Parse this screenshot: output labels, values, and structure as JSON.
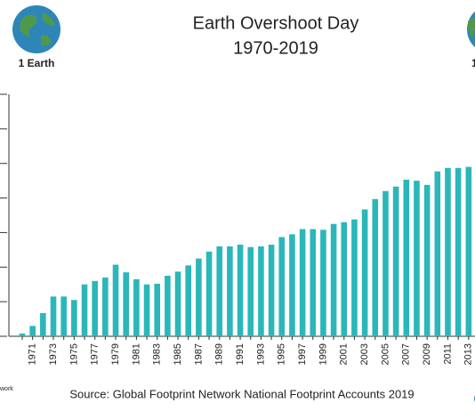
{
  "chart_data": {
    "type": "bar",
    "title": "Earth Overshoot Day",
    "subtitle": "1970-2019",
    "left_badge": "1 Earth",
    "right_badge": "1",
    "logo_text": "work",
    "source": "Source: Global Footprint Network National Footprint Accounts 2019",
    "categories": [
      null,
      "1971",
      null,
      "1973",
      null,
      "1975",
      null,
      "1977",
      null,
      "1979",
      null,
      "1981",
      null,
      "1983",
      null,
      "1985",
      null,
      "1987",
      null,
      "1989",
      null,
      "1991",
      null,
      "1993",
      null,
      "1995",
      null,
      "1997",
      null,
      "1999",
      null,
      "2001",
      null,
      "2003",
      null,
      "2005",
      null,
      "2007",
      null,
      "2009",
      null,
      "2011",
      null,
      "2013"
    ],
    "values": [
      0.08,
      0.3,
      0.67,
      1.15,
      1.15,
      1.05,
      1.5,
      1.6,
      1.7,
      2.07,
      1.85,
      1.65,
      1.5,
      1.52,
      1.75,
      1.87,
      2.05,
      2.25,
      2.45,
      2.6,
      2.6,
      2.65,
      2.58,
      2.6,
      2.65,
      2.87,
      2.95,
      3.1,
      3.1,
      3.08,
      3.25,
      3.3,
      3.38,
      3.67,
      3.97,
      4.2,
      4.33,
      4.53,
      4.5,
      4.38,
      4.77,
      4.87,
      4.87,
      4.9
    ],
    "color": "#2bb7b9",
    "ylim": [
      0,
      7
    ],
    "yticks": [
      0,
      1,
      2,
      3,
      4,
      5,
      6,
      7
    ],
    "grid": false
  }
}
